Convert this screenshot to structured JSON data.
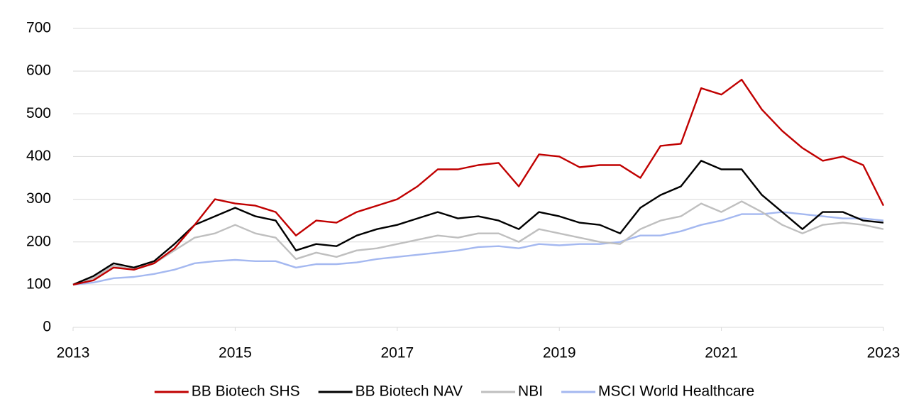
{
  "chart_data": {
    "type": "line",
    "x": [
      2013,
      2013.25,
      2013.5,
      2013.75,
      2014,
      2014.25,
      2014.5,
      2014.75,
      2015,
      2015.25,
      2015.5,
      2015.75,
      2016,
      2016.25,
      2016.5,
      2016.75,
      2017,
      2017.25,
      2017.5,
      2017.75,
      2018,
      2018.25,
      2018.5,
      2018.75,
      2019,
      2019.25,
      2019.5,
      2019.75,
      2020,
      2020.25,
      2020.5,
      2020.75,
      2021,
      2021.25,
      2021.5,
      2021.75,
      2022,
      2022.25,
      2022.5,
      2022.75,
      2023
    ],
    "series": [
      {
        "name": "BB Biotech SHS",
        "color": "#c00000",
        "values": [
          100,
          110,
          140,
          135,
          150,
          185,
          240,
          300,
          290,
          285,
          270,
          215,
          250,
          245,
          270,
          285,
          300,
          330,
          370,
          370,
          380,
          385,
          330,
          405,
          400,
          375,
          380,
          380,
          350,
          425,
          430,
          560,
          545,
          580,
          510,
          460,
          420,
          390,
          400,
          380,
          285
        ]
      },
      {
        "name": "BB Biotech NAV",
        "color": "#000000",
        "values": [
          100,
          120,
          150,
          140,
          155,
          195,
          240,
          260,
          280,
          260,
          250,
          180,
          195,
          190,
          215,
          230,
          240,
          255,
          270,
          255,
          260,
          250,
          230,
          270,
          260,
          245,
          240,
          220,
          280,
          310,
          330,
          390,
          370,
          370,
          310,
          270,
          230,
          270,
          270,
          250,
          245
        ]
      },
      {
        "name": "NBI",
        "color": "#bfbfbf",
        "values": [
          100,
          115,
          145,
          135,
          150,
          180,
          210,
          220,
          240,
          220,
          210,
          160,
          175,
          165,
          180,
          185,
          195,
          205,
          215,
          210,
          220,
          220,
          200,
          230,
          220,
          210,
          200,
          195,
          230,
          250,
          260,
          290,
          270,
          295,
          270,
          240,
          220,
          240,
          245,
          240,
          230
        ]
      },
      {
        "name": "MSCI World Healthcare",
        "color": "#a4b8f0",
        "values": [
          100,
          105,
          115,
          118,
          125,
          135,
          150,
          155,
          158,
          155,
          155,
          140,
          148,
          148,
          152,
          160,
          165,
          170,
          175,
          180,
          188,
          190,
          185,
          195,
          192,
          195,
          195,
          200,
          215,
          215,
          225,
          240,
          250,
          265,
          265,
          270,
          265,
          260,
          255,
          255,
          250
        ]
      }
    ],
    "xlim": [
      2013,
      2023
    ],
    "xticks": [
      2013,
      2015,
      2017,
      2019,
      2021,
      2023
    ],
    "ylim": [
      0,
      700
    ],
    "yticks": [
      0,
      100,
      200,
      300,
      400,
      500,
      600,
      700
    ],
    "grid": true,
    "legend": "bottom"
  }
}
